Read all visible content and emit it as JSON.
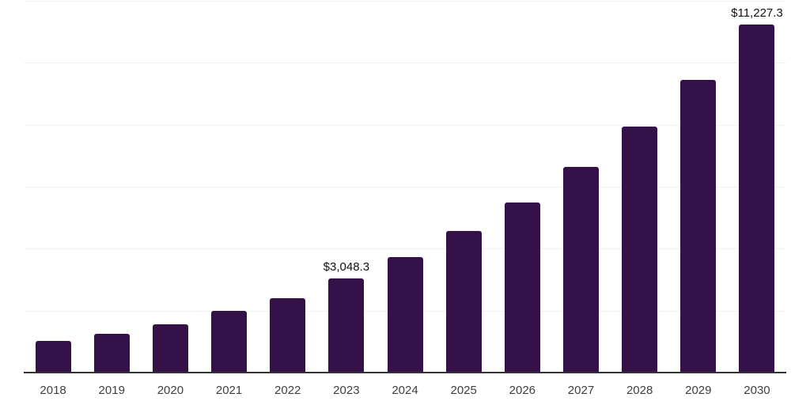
{
  "chart_data": {
    "type": "bar",
    "categories": [
      "2018",
      "2019",
      "2020",
      "2021",
      "2022",
      "2023",
      "2024",
      "2025",
      "2026",
      "2027",
      "2028",
      "2029",
      "2030"
    ],
    "values": [
      1010,
      1240,
      1560,
      1985,
      2410,
      3048.3,
      3740,
      4560,
      5500,
      6630,
      7940,
      9450,
      11227.3
    ],
    "point_labels": {
      "2023": "$3,048.3",
      "2030": "$11,227.3"
    },
    "title": "",
    "xlabel": "",
    "ylabel": "",
    "ylim": [
      0,
      12000
    ],
    "gridline_interval": 2000,
    "grid": "horizontal",
    "legend": "none",
    "bar_color": "#341148",
    "gridline_color": "#f2f2f2",
    "axis_line_color": "#333333",
    "value_label_color": "#111111",
    "x_label_color": "#3f3f3f"
  }
}
